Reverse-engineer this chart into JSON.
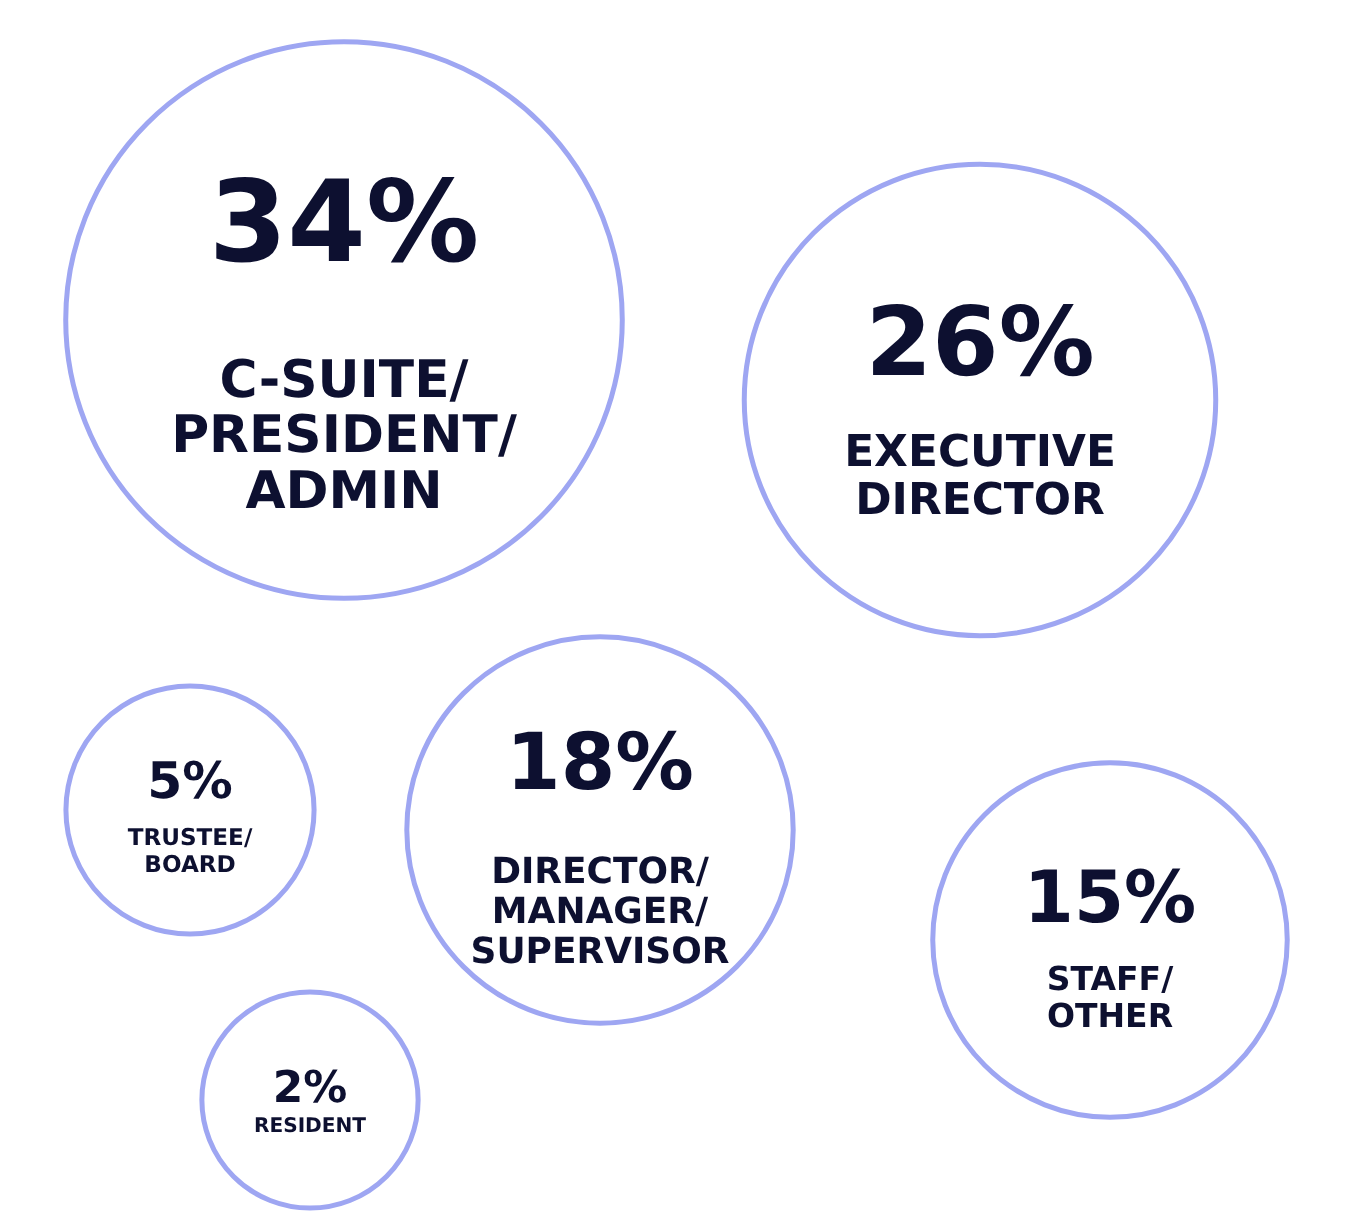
{
  "chart_data": {
    "type": "other",
    "categories": [
      "C-SUITE/PRESIDENT/ADMIN",
      "EXECUTIVE DIRECTOR",
      "TRUSTEE/BOARD",
      "DIRECTOR/MANAGER/SUPERVISOR",
      "STAFF/OTHER",
      "RESIDENT"
    ],
    "values": [
      34,
      26,
      5,
      18,
      15,
      2
    ],
    "value_labels": [
      "34%",
      "26%",
      "5%",
      "18%",
      "15%",
      "2%"
    ]
  }
}
